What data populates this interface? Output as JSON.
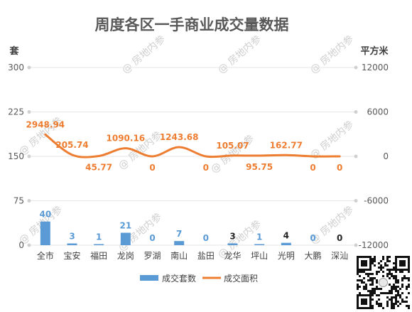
{
  "chart_data": {
    "type": "bar+line",
    "title": "周度各区一手商业成交量数据",
    "categories": [
      "全市",
      "宝安",
      "福田",
      "龙岗",
      "罗湖",
      "南山",
      "盐田",
      "龙华",
      "坪山",
      "光明",
      "大鹏",
      "深汕"
    ],
    "left_axis": {
      "label": "套",
      "ticks": [
        0,
        75,
        150,
        225,
        300
      ],
      "ylim": [
        0,
        300
      ]
    },
    "right_axis": {
      "label": "平方米",
      "ticks": [
        -12000,
        -6000,
        0,
        6000,
        12000
      ],
      "ylim": [
        -12000,
        12000
      ]
    },
    "series": [
      {
        "name": "成交套数",
        "type": "bar",
        "axis": "left",
        "color": "#5B9BD5",
        "values": [
          40,
          3,
          1,
          21,
          0,
          7,
          0,
          3,
          1,
          4,
          0,
          0
        ],
        "labels": [
          "40",
          "3",
          "1",
          "21",
          "0",
          "7",
          "0",
          "3",
          "1",
          "4",
          "0",
          "0"
        ],
        "label_colors": [
          "#5B9BD5",
          "#5B9BD5",
          "#5B9BD5",
          "#5B9BD5",
          "#5B9BD5",
          "#5B9BD5",
          "#5B9BD5",
          "#262626",
          "#5B9BD5",
          "#262626",
          "#5B9BD5",
          "#262626"
        ]
      },
      {
        "name": "成交面积",
        "type": "line",
        "axis": "right",
        "color": "#ED7D31",
        "values": [
          2948.94,
          205.74,
          45.77,
          1090.16,
          0,
          1243.68,
          0,
          105.07,
          95.75,
          162.77,
          0,
          0
        ],
        "labels": [
          "2948.94",
          "205.74",
          "45.77",
          "1090.16",
          "0",
          "1243.68",
          "0",
          "105.07",
          "95.75",
          "162.77",
          "0",
          "0"
        ]
      }
    ],
    "legend_position": "bottom",
    "grid": true,
    "watermark": "@ 房地内参"
  }
}
